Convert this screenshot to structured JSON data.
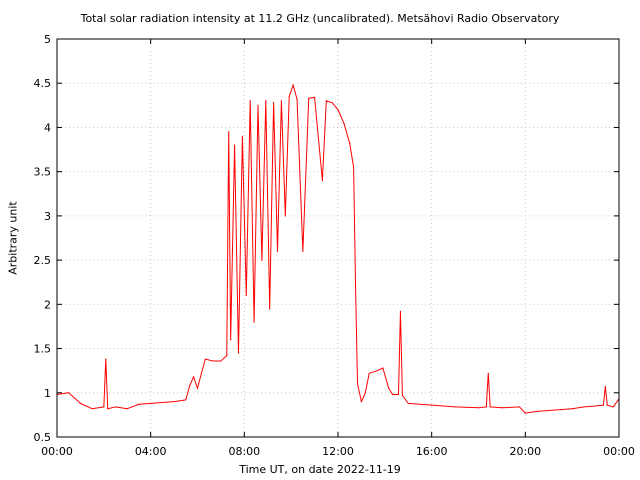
{
  "chart_data": {
    "type": "line",
    "title": "Total solar radiation intensity at 11.2 GHz (uncalibrated). Metsähovi Radio Observatory",
    "xlabel": "Time UT, on date 2022-11-19",
    "ylabel": "Arbitrary unit",
    "xlim": [
      "2022-11-19 00:00",
      "2022-11-20 00:00"
    ],
    "ylim": [
      0.5,
      5
    ],
    "xticks": [
      "00:00",
      "04:00",
      "08:00",
      "12:00",
      "16:00",
      "20:00",
      "00:00"
    ],
    "yticks": [
      "0.5",
      "1",
      "1.5",
      "2",
      "2.5",
      "3",
      "3.5",
      "4",
      "4.5",
      "5"
    ],
    "grid": true,
    "series": [
      {
        "color": "#ff0000",
        "points": [
          [
            "00:00",
            0.98
          ],
          [
            "00:30",
            1.0
          ],
          [
            "01:00",
            0.88
          ],
          [
            "01:30",
            0.82
          ],
          [
            "02:00",
            0.84
          ],
          [
            "02:05",
            1.38
          ],
          [
            "02:10",
            0.82
          ],
          [
            "02:30",
            0.84
          ],
          [
            "03:00",
            0.82
          ],
          [
            "03:30",
            0.87
          ],
          [
            "04:00",
            0.88
          ],
          [
            "05:00",
            0.9
          ],
          [
            "05:30",
            0.92
          ],
          [
            "05:40",
            1.08
          ],
          [
            "05:50",
            1.18
          ],
          [
            "06:00",
            1.05
          ],
          [
            "06:10",
            1.22
          ],
          [
            "06:20",
            1.38
          ],
          [
            "06:40",
            1.36
          ],
          [
            "07:00",
            1.36
          ],
          [
            "07:15",
            1.42
          ],
          [
            "07:20",
            3.95
          ],
          [
            "07:25",
            1.6
          ],
          [
            "07:35",
            3.8
          ],
          [
            "07:45",
            1.45
          ],
          [
            "07:55",
            3.9
          ],
          [
            "08:05",
            2.1
          ],
          [
            "08:15",
            4.3
          ],
          [
            "08:25",
            1.8
          ],
          [
            "08:35",
            4.25
          ],
          [
            "08:45",
            2.5
          ],
          [
            "08:55",
            4.3
          ],
          [
            "09:05",
            1.95
          ],
          [
            "09:15",
            4.28
          ],
          [
            "09:25",
            2.6
          ],
          [
            "09:35",
            4.3
          ],
          [
            "09:45",
            3.0
          ],
          [
            "09:55",
            4.35
          ],
          [
            "10:05",
            4.48
          ],
          [
            "10:15",
            4.32
          ],
          [
            "10:30",
            2.6
          ],
          [
            "10:45",
            4.33
          ],
          [
            "11:00",
            4.34
          ],
          [
            "11:20",
            3.4
          ],
          [
            "11:30",
            4.3
          ],
          [
            "11:45",
            4.28
          ],
          [
            "12:00",
            4.2
          ],
          [
            "12:15",
            4.05
          ],
          [
            "12:30",
            3.82
          ],
          [
            "12:40",
            3.55
          ],
          [
            "12:45",
            2.2
          ],
          [
            "12:50",
            1.1
          ],
          [
            "13:00",
            0.9
          ],
          [
            "13:10",
            1.0
          ],
          [
            "13:20",
            1.22
          ],
          [
            "13:40",
            1.25
          ],
          [
            "13:55",
            1.28
          ],
          [
            "14:10",
            1.05
          ],
          [
            "14:20",
            0.98
          ],
          [
            "14:35",
            0.98
          ],
          [
            "14:40",
            1.92
          ],
          [
            "14:45",
            0.97
          ],
          [
            "15:00",
            0.88
          ],
          [
            "16:00",
            0.86
          ],
          [
            "17:00",
            0.84
          ],
          [
            "18:00",
            0.83
          ],
          [
            "18:20",
            0.84
          ],
          [
            "18:25",
            1.22
          ],
          [
            "18:30",
            0.84
          ],
          [
            "19:00",
            0.83
          ],
          [
            "19:45",
            0.84
          ],
          [
            "20:00",
            0.77
          ],
          [
            "20:30",
            0.79
          ],
          [
            "21:00",
            0.8
          ],
          [
            "21:30",
            0.81
          ],
          [
            "22:00",
            0.82
          ],
          [
            "22:30",
            0.84
          ],
          [
            "23:00",
            0.85
          ],
          [
            "23:20",
            0.86
          ],
          [
            "23:25",
            1.07
          ],
          [
            "23:30",
            0.86
          ],
          [
            "23:45",
            0.84
          ],
          [
            "24:00",
            0.93
          ]
        ]
      }
    ]
  }
}
